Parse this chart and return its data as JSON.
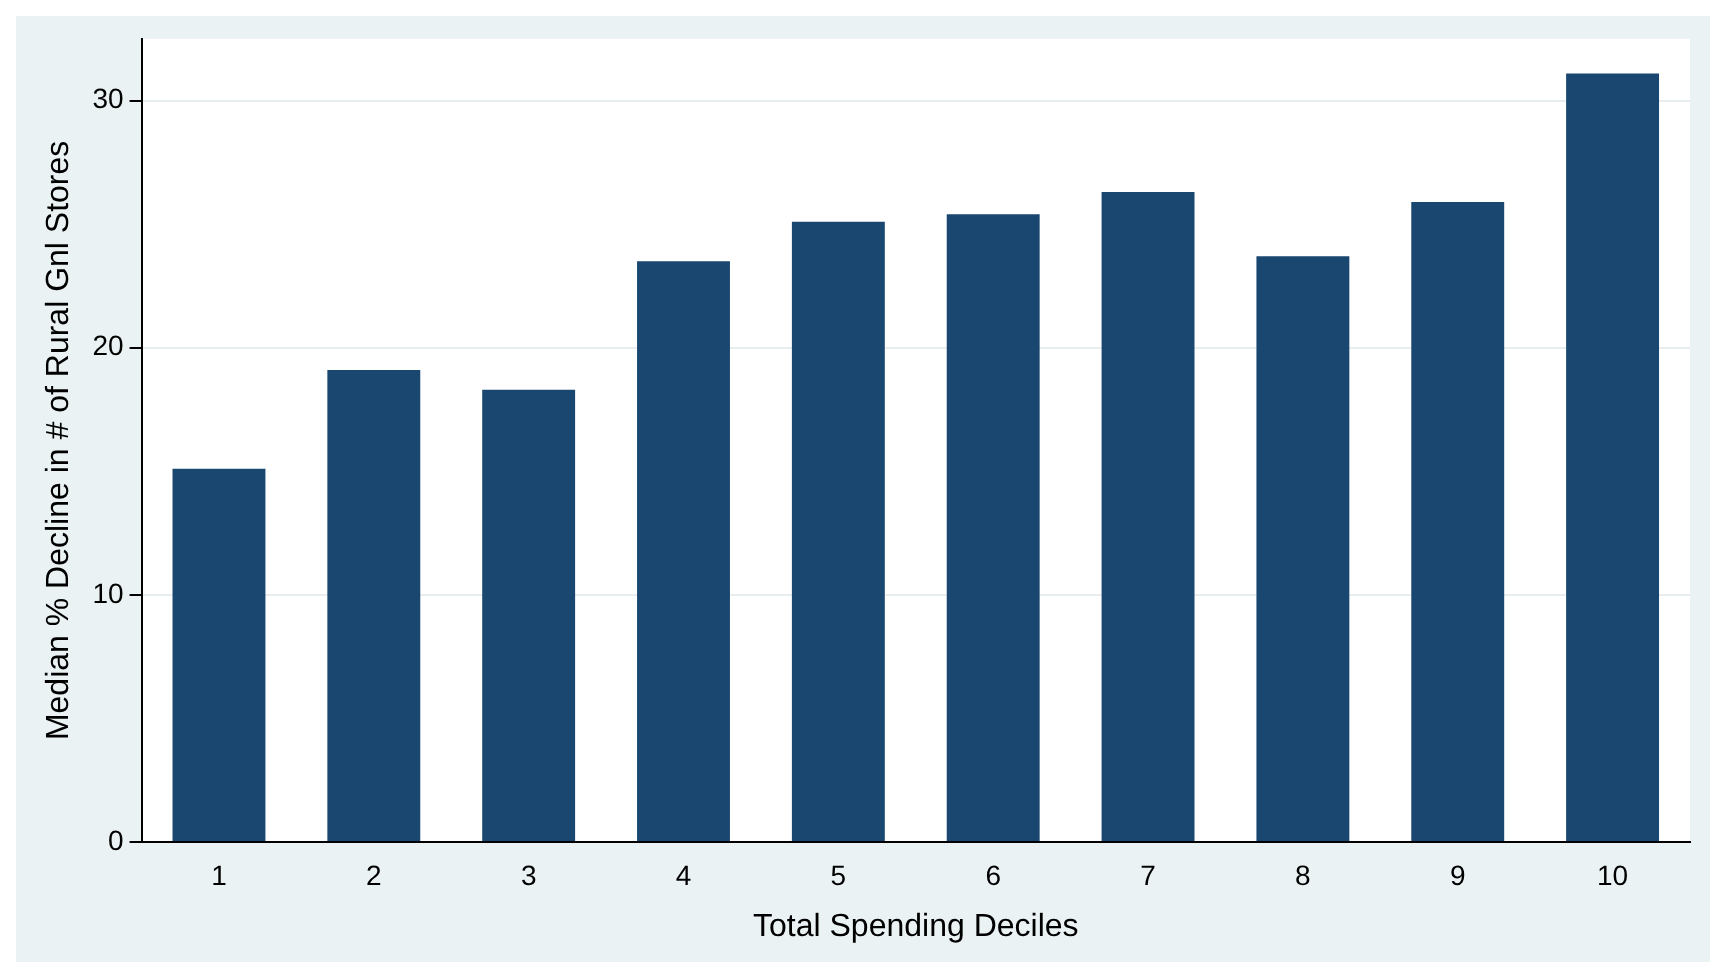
{
  "chart_data": {
    "type": "bar",
    "xlabel": "Total Spending Deciles",
    "ylabel": "Median % Decline in # of Rural Gnl Stores",
    "categories": [
      "1",
      "2",
      "3",
      "4",
      "5",
      "6",
      "7",
      "8",
      "9",
      "10"
    ],
    "values": [
      15.1,
      19.1,
      18.3,
      23.5,
      25.1,
      25.4,
      26.3,
      23.7,
      25.9,
      31.1
    ],
    "color": "#1a476f",
    "ylim": [
      0,
      32.5
    ],
    "yticks": [
      0,
      10,
      20,
      30
    ],
    "grid": "y",
    "legend": false
  }
}
